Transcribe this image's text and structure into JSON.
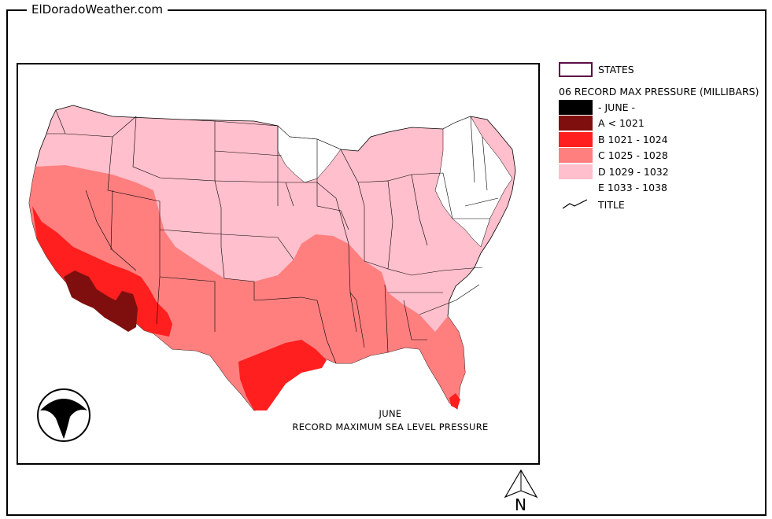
{
  "site": {
    "title": "ElDoradoWeather.com"
  },
  "caption": {
    "month": "JUNE",
    "subtitle": "RECORD  MAXIMUM  SEA LEVEL PRESSURE"
  },
  "logo": {
    "text": "NOAA"
  },
  "legend": {
    "states_label": "STATES",
    "layer_title": "06 RECORD MAX PRESSURE (MILLIBARS)",
    "title_label": "TITLE",
    "items": [
      {
        "label": "- JUNE -",
        "color": "#000000"
      },
      {
        "label": "A < 1021",
        "color": "#7f0f0f"
      },
      {
        "label": "B 1021 - 1024",
        "color": "#ff1f1f"
      },
      {
        "label": "C 1025 - 1028",
        "color": "#ff7f7f"
      },
      {
        "label": "D 1029 - 1032",
        "color": "#ffbfcc"
      },
      {
        "label": "E 1033 - 1038",
        "color": "#ffffff"
      }
    ]
  },
  "north_arrow": {
    "label": "N"
  }
}
